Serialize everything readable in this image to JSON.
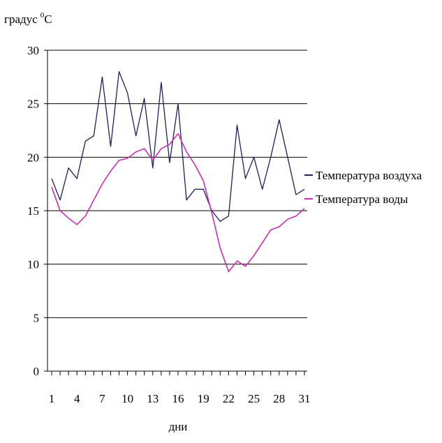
{
  "chart_data": {
    "type": "line",
    "ylabel": "градус",
    "ylabel_sup": "0",
    "ylabel_unit": "C",
    "xlabel": "дни",
    "ylim": [
      0,
      30
    ],
    "y_ticks": [
      "0",
      "5",
      "10",
      "15",
      "20",
      "25",
      "30"
    ],
    "x_tick_values": [
      1,
      4,
      7,
      10,
      13,
      16,
      19,
      22,
      25,
      28,
      31
    ],
    "x_ticks": [
      "1",
      "4",
      "7",
      "10",
      "13",
      "16",
      "19",
      "22",
      "25",
      "28",
      "31"
    ],
    "grid": true,
    "legend": "right",
    "colors": {
      "air": "#1f1f5c",
      "water": "#cc2fb5"
    },
    "x": [
      1,
      2,
      3,
      4,
      5,
      6,
      7,
      8,
      9,
      10,
      11,
      12,
      13,
      14,
      15,
      16,
      17,
      18,
      19,
      20,
      21,
      22,
      23,
      24,
      25,
      26,
      27,
      28,
      29,
      30,
      31
    ],
    "series": [
      {
        "name": "Температура воздуха",
        "values": [
          18,
          16,
          19,
          18,
          21.5,
          22,
          27.5,
          21,
          28,
          26,
          22,
          25.5,
          19,
          27,
          19.5,
          25,
          16,
          17,
          17,
          15,
          14,
          14.5,
          23,
          18,
          20,
          17,
          20,
          23.5,
          20,
          16.5,
          17
        ]
      },
      {
        "name": "Температура воды",
        "values": [
          17.2,
          15,
          14.3,
          13.7,
          14.5,
          16,
          17.5,
          18.7,
          19.7,
          19.9,
          20.5,
          20.8,
          19.7,
          20.8,
          21.2,
          22.2,
          20.5,
          19.3,
          17.8,
          14.8,
          11.5,
          9.3,
          10.3,
          9.8,
          10.8,
          12,
          13.2,
          13.5,
          14.2,
          14.5,
          15.2
        ]
      }
    ]
  }
}
